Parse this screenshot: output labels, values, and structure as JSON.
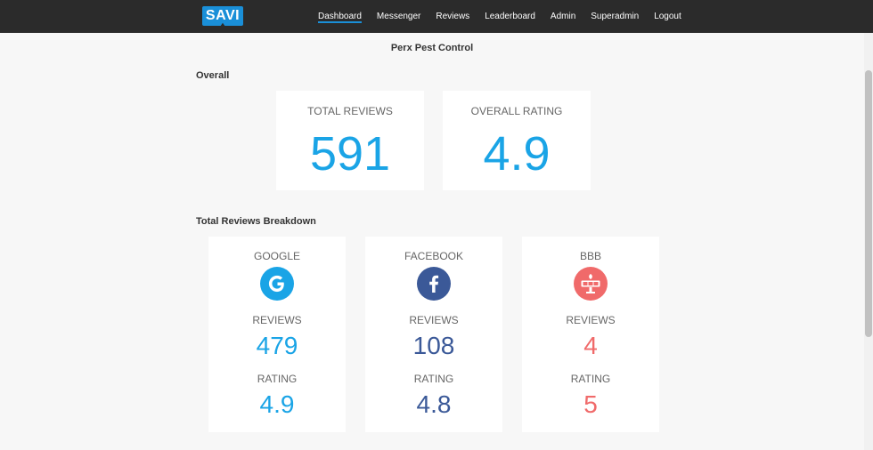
{
  "nav": {
    "logo": "SAVI",
    "links": [
      "Dashboard",
      "Messenger",
      "Reviews",
      "Leaderboard",
      "Admin",
      "Superadmin",
      "Logout"
    ]
  },
  "page_title": "Perx Pest Control",
  "overall": {
    "title": "Overall",
    "total_reviews_label": "TOTAL REVIEWS",
    "total_reviews": "591",
    "overall_rating_label": "OVERALL RATING",
    "overall_rating": "4.9"
  },
  "breakdown": {
    "title": "Total Reviews Breakdown",
    "reviews_label": "REVIEWS",
    "rating_label": "RATING",
    "sources": [
      {
        "name": "GOOGLE",
        "icon": "google-icon",
        "reviews": "479",
        "rating": "4.9",
        "color": "#1aa4e6"
      },
      {
        "name": "FACEBOOK",
        "icon": "facebook-icon",
        "reviews": "108",
        "rating": "4.8",
        "color": "#3b5998"
      },
      {
        "name": "BBB",
        "icon": "bbb-icon",
        "reviews": "4",
        "rating": "5",
        "color": "#f06a6a"
      }
    ]
  },
  "colors": {
    "accent": "#1aa4e6",
    "navbar": "#2b2b2b",
    "facebook": "#3b5998",
    "bbb": "#f06a6a"
  }
}
